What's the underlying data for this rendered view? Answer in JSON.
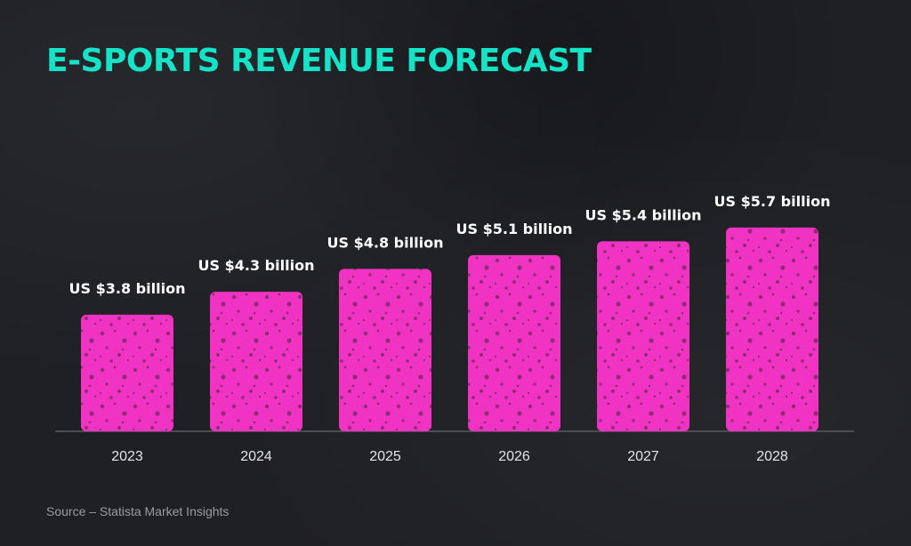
{
  "colors": {
    "background": "#1f2024",
    "title": "#14e3c8",
    "bar": "#f033c2",
    "label": "#ffffff",
    "axis": "#5a5c63",
    "tick": "#e4e4e7",
    "source": "#9a9ca3"
  },
  "title": "E-SPORTS REVENUE FORECAST",
  "source": "Source – Statista Market Insights",
  "chart_data": {
    "type": "bar",
    "title": "E-SPORTS REVENUE FORECAST",
    "xlabel": "",
    "ylabel": "",
    "unit": "US$ billion",
    "categories": [
      "2023",
      "2024",
      "2025",
      "2026",
      "2027",
      "2028"
    ],
    "values": [
      3.8,
      4.3,
      4.8,
      5.1,
      5.4,
      5.7
    ],
    "data_labels": [
      "US $3.8 billion",
      "US $4.3 billion",
      "US $4.8 billion",
      "US $5.1 billion",
      "US $5.4 billion",
      "US $5.7 billion"
    ],
    "ylim": [
      0,
      6.2
    ],
    "grid": false,
    "legend": "none"
  }
}
